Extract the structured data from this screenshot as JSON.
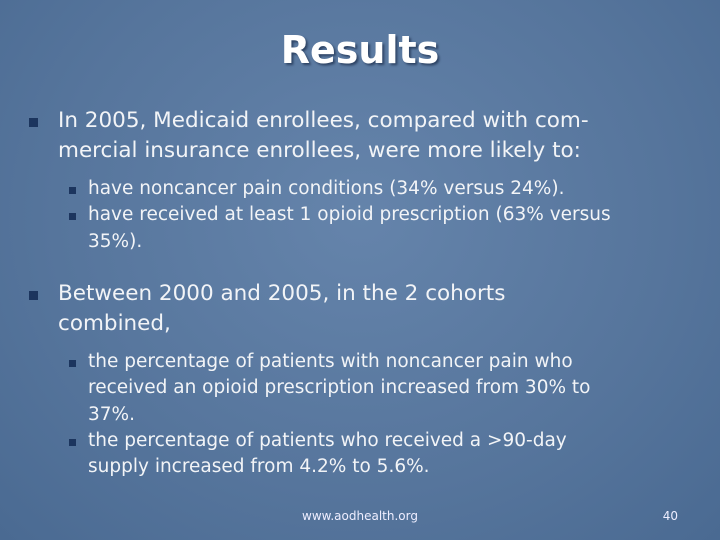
{
  "header": {
    "title": "Results"
  },
  "bullets": [
    {
      "lines": [
        "In 2005, Medicaid enrollees, compared with com-",
        "mercial insurance enrollees, were more likely to:"
      ],
      "sub_bullets": [
        {
          "lines": [
            "have noncancer pain conditions (34% versus 24%)."
          ]
        },
        {
          "lines": [
            "have received at least 1 opioid prescription (63% versus",
            "35%)."
          ]
        }
      ]
    },
    {
      "lines": [
        "Between 2000 and 2005, in the 2 cohorts",
        "combined,"
      ],
      "sub_bullets": [
        {
          "lines": [
            "the percentage of patients with noncancer pain who",
            "received an opioid prescription increased from 30% to",
            "37%."
          ]
        },
        {
          "lines": [
            "the percentage of patients who received a >90-day",
            "supply increased from 4.2% to 5.6%."
          ]
        }
      ]
    }
  ],
  "footer": {
    "url": "www.aodhealth.org",
    "page_number": 40
  }
}
